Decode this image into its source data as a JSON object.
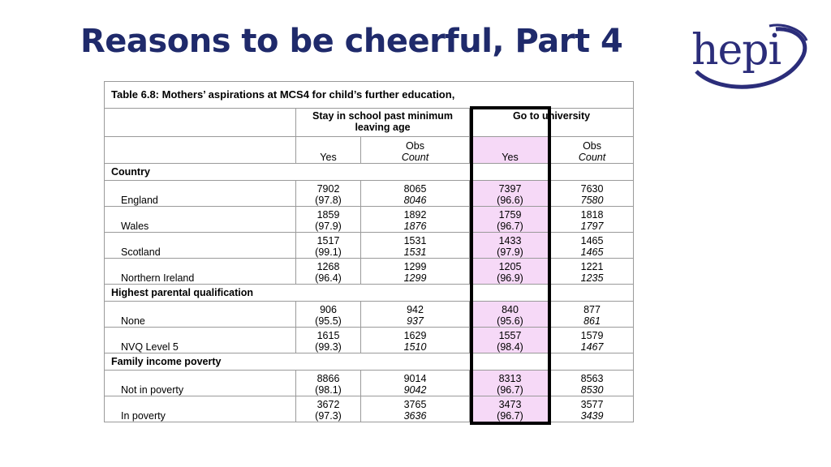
{
  "slide": {
    "title": "Reasons to be cheerful, Part 4",
    "logo_text": "hepi"
  },
  "table": {
    "caption": "Table 6.8: Mothers’ aspirations at MCS4 for child’s further education,",
    "group1_header": "Stay in school past minimum leaving age",
    "group2_header": "Go to university",
    "col_yes": "Yes",
    "col_obs": "Obs",
    "col_count": "Count",
    "sections": [
      {
        "title": "Country",
        "rows": [
          {
            "label": "England",
            "stay_yes": "7902",
            "stay_pct": "(97.8)",
            "stay_obs": "8065",
            "stay_count": "8046",
            "uni_yes": "7397",
            "uni_pct": "(96.6)",
            "uni_obs": "7630",
            "uni_count": "7580"
          },
          {
            "label": "Wales",
            "stay_yes": "1859",
            "stay_pct": "(97.9)",
            "stay_obs": "1892",
            "stay_count": "1876",
            "uni_yes": "1759",
            "uni_pct": "(96.7)",
            "uni_obs": "1818",
            "uni_count": "1797"
          },
          {
            "label": "Scotland",
            "stay_yes": "1517",
            "stay_pct": "(99.1)",
            "stay_obs": "1531",
            "stay_count": "1531",
            "uni_yes": "1433",
            "uni_pct": "(97.9)",
            "uni_obs": "1465",
            "uni_count": "1465"
          },
          {
            "label": "Northern Ireland",
            "stay_yes": "1268",
            "stay_pct": "(96.4)",
            "stay_obs": "1299",
            "stay_count": "1299",
            "uni_yes": "1205",
            "uni_pct": "(96.9)",
            "uni_obs": "1221",
            "uni_count": "1235"
          }
        ]
      },
      {
        "title": "Highest parental qualification",
        "rows": [
          {
            "label": "None",
            "stay_yes": "906",
            "stay_pct": "(95.5)",
            "stay_obs": "942",
            "stay_count": "937",
            "uni_yes": "840",
            "uni_pct": "(95.6)",
            "uni_obs": "877",
            "uni_count": "861"
          },
          {
            "label": "NVQ Level 5",
            "stay_yes": "1615",
            "stay_pct": "(99.3)",
            "stay_obs": "1629",
            "stay_count": "1510",
            "uni_yes": "1557",
            "uni_pct": "(98.4)",
            "uni_obs": "1579",
            "uni_count": "1467"
          }
        ]
      },
      {
        "title": "Family income poverty",
        "rows": [
          {
            "label": "Not in poverty",
            "stay_yes": "8866",
            "stay_pct": "(98.1)",
            "stay_obs": "9014",
            "stay_count": "9042",
            "uni_yes": "8313",
            "uni_pct": "(96.7)",
            "uni_obs": "8563",
            "uni_count": "8530"
          },
          {
            "label": "In poverty",
            "stay_yes": "3672",
            "stay_pct": "(97.3)",
            "stay_obs": "3765",
            "stay_count": "3636",
            "uni_yes": "3473",
            "uni_pct": "(96.7)",
            "uni_obs": "3577",
            "uni_count": "3439"
          }
        ]
      }
    ],
    "highlight_color": "#f6d9f7"
  }
}
